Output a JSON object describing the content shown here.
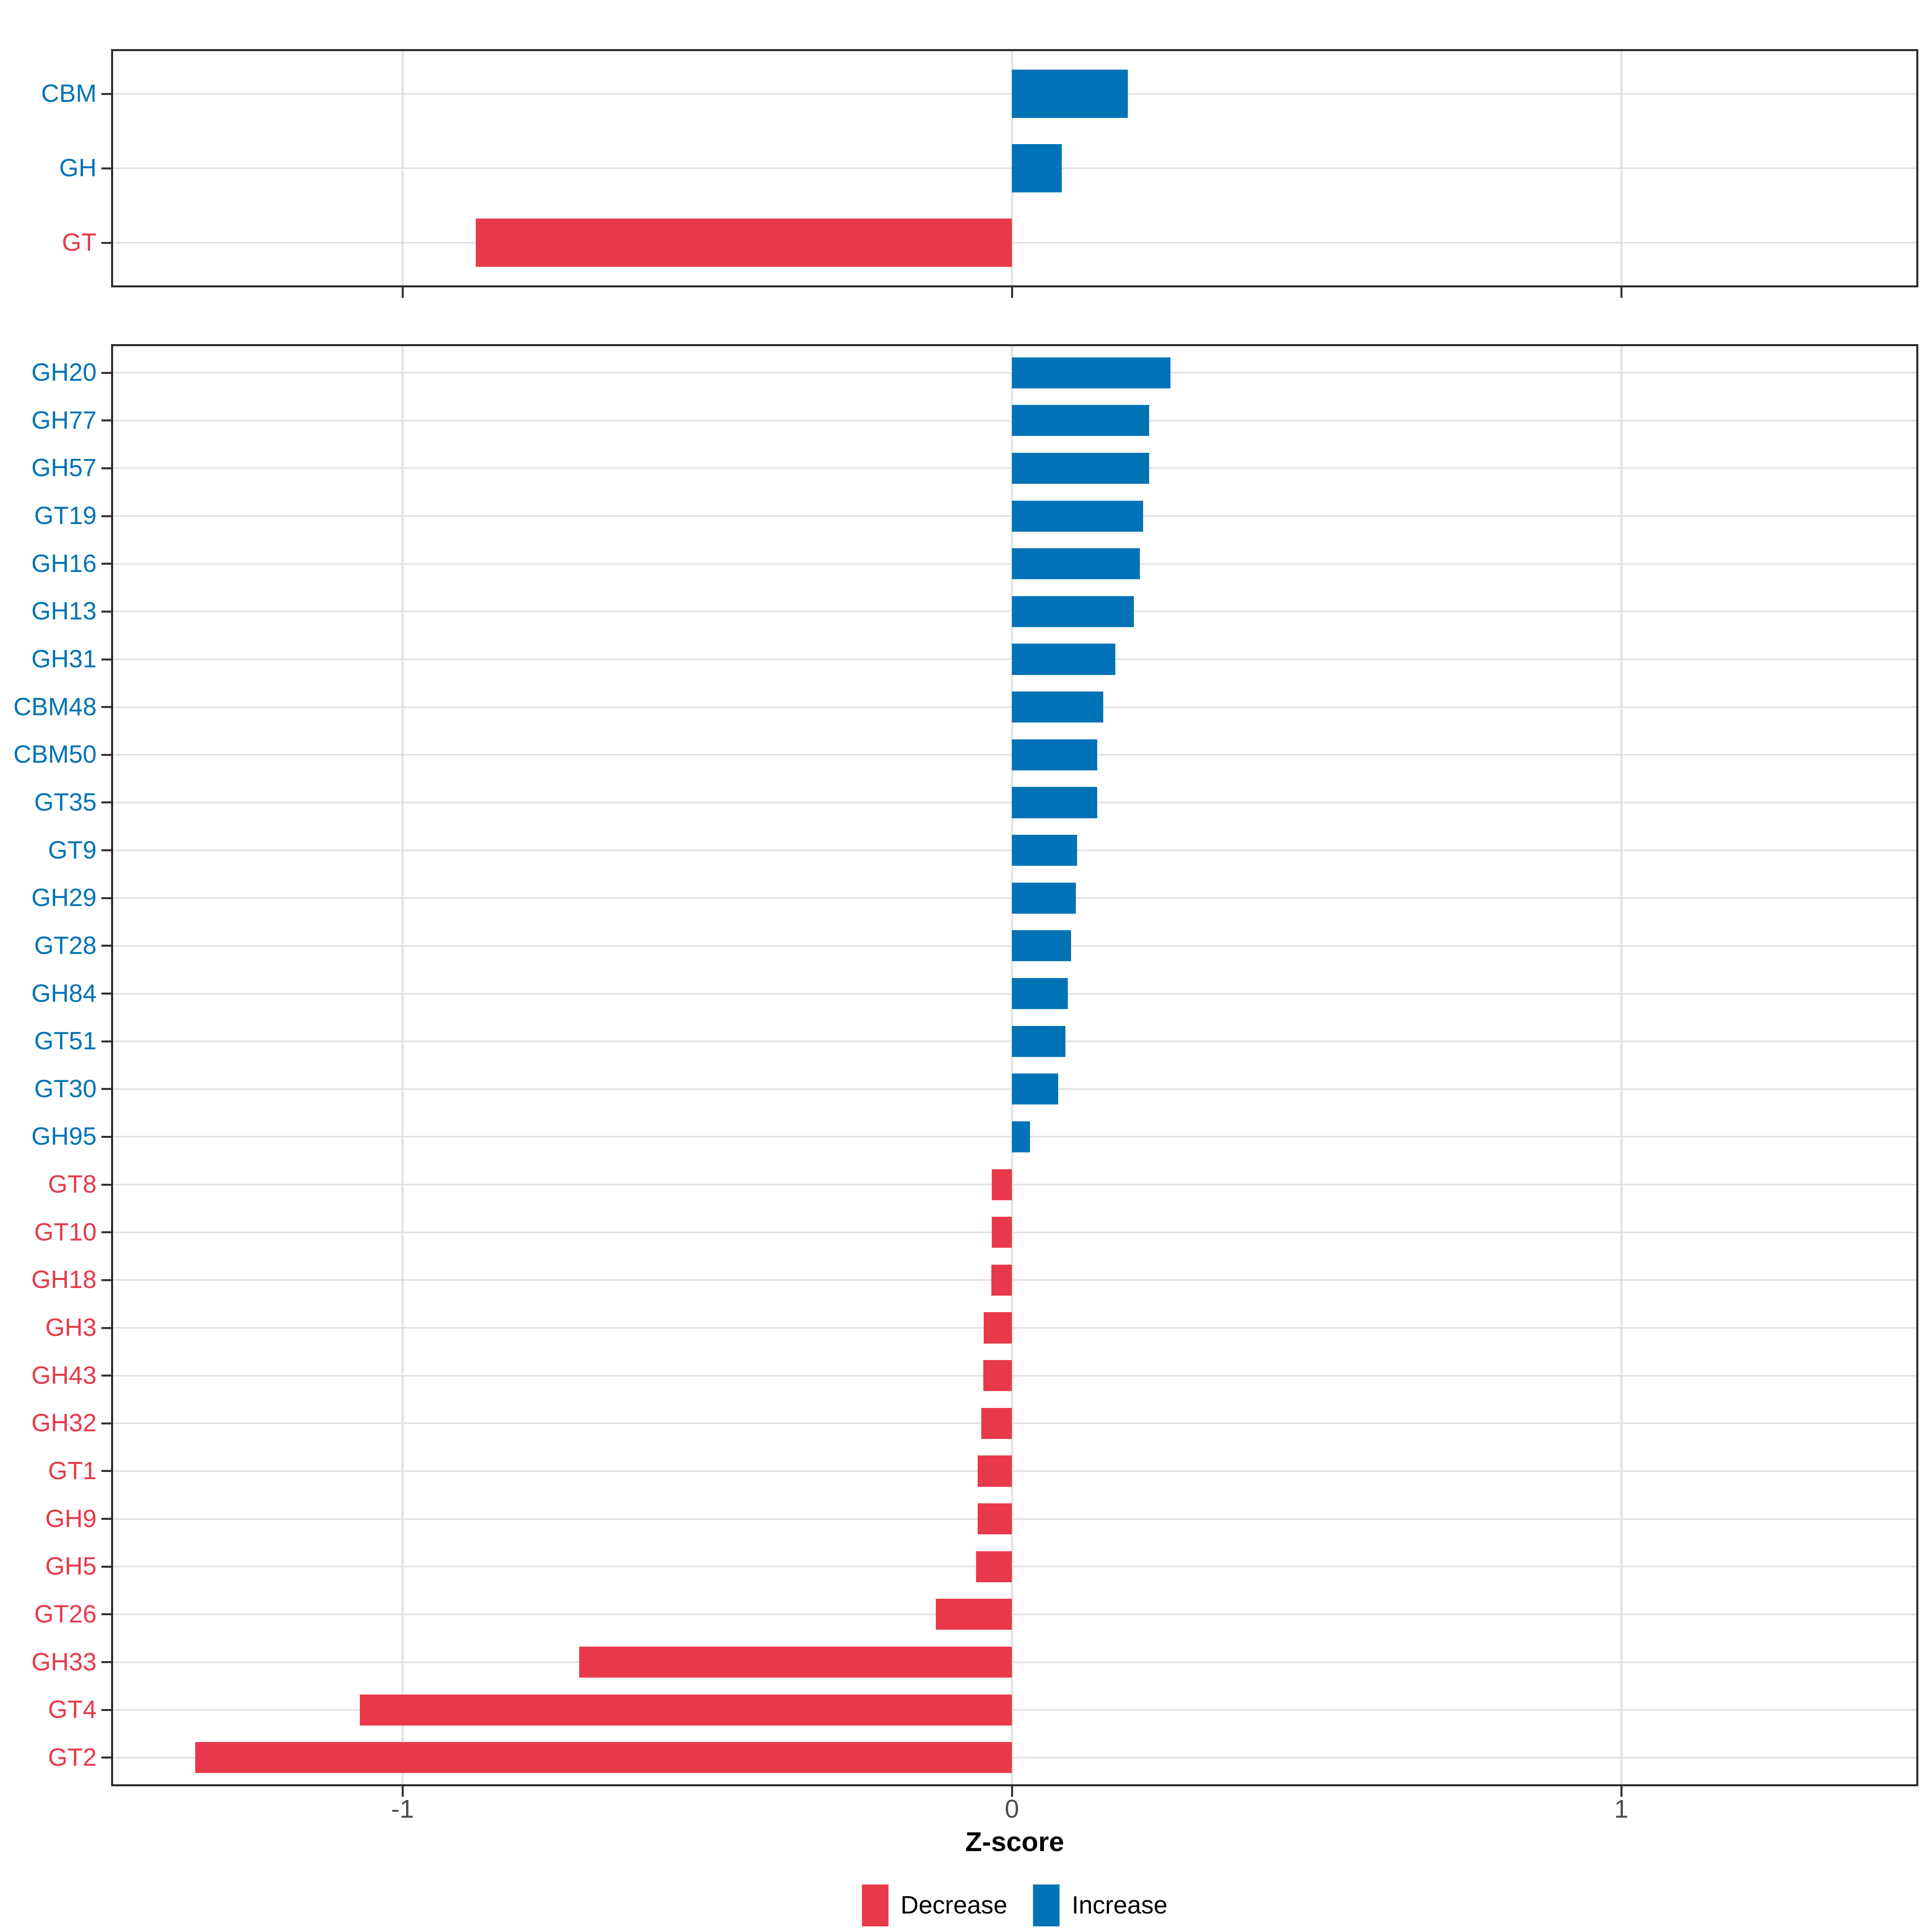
{
  "chart_data": {
    "type": "bar",
    "orientation": "horizontal",
    "xlabel": "Z-score",
    "x_ticks": [
      -1,
      0,
      1
    ],
    "x_tick_labels": [
      "-1",
      "0",
      "1"
    ],
    "xlim": [
      -1.48,
      1.49
    ],
    "grid": true,
    "legend_position": "bottom",
    "colors": {
      "increase": "#0073b6",
      "decrease": "#e8394a",
      "gridline": "#e2e2e2",
      "panel_border": "#2b2b2b",
      "tick_label": "#4d4d4d"
    },
    "facets": [
      {
        "name": "enzyme-classes",
        "categories": [
          "CBM",
          "GH",
          "GT"
        ],
        "values": [
          0.19,
          0.082,
          -0.88
        ]
      },
      {
        "name": "enzyme-families",
        "categories": [
          "GH20",
          "GH77",
          "GH57",
          "GT19",
          "GH16",
          "GH13",
          "GH31",
          "CBM48",
          "CBM50",
          "GT35",
          "GT9",
          "GH29",
          "GT28",
          "GH84",
          "GT51",
          "GT30",
          "GH95",
          "GT8",
          "GT10",
          "GH18",
          "GH3",
          "GH43",
          "GH32",
          "GT1",
          "GH9",
          "GH5",
          "GT26",
          "GH33",
          "GT4",
          "GT2"
        ],
        "values": [
          0.26,
          0.225,
          0.225,
          0.215,
          0.21,
          0.2,
          0.17,
          0.15,
          0.14,
          0.14,
          0.107,
          0.105,
          0.097,
          0.092,
          0.088,
          0.076,
          0.03,
          -0.033,
          -0.033,
          -0.034,
          -0.046,
          -0.047,
          -0.05,
          -0.056,
          -0.056,
          -0.059,
          -0.125,
          -0.71,
          -1.07,
          -1.34
        ]
      }
    ],
    "legend": [
      {
        "label": "Decrease",
        "color": "#e8394a"
      },
      {
        "label": "Increase",
        "color": "#0073b6"
      }
    ]
  },
  "axis": {
    "title": "Z-score"
  },
  "legend": {
    "decrease_label": "Decrease",
    "increase_label": "Increase"
  }
}
